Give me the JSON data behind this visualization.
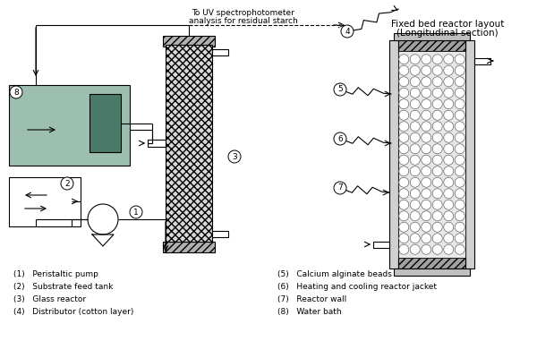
{
  "bg_color": "#ffffff",
  "water_bath_color": "#9dbfb0",
  "heater_color": "#4a7a6a",
  "legend_items_left": [
    "(1)   Peristaltic pump",
    "(2)   Substrate feed tank",
    "(3)   Glass reactor",
    "(4)   Distributor (cotton layer)"
  ],
  "legend_items_right": [
    "(5)   Calcium alginate beads",
    "(6)   Heating and cooling reactor jacket",
    "(7)   Reactor wall",
    "(8)   Water bath"
  ],
  "title_right_line1": "Fixed bed reactor layout",
  "title_right_line2": "(Longitudinal section)",
  "annotation_top_line1": "To UV spectrophotometer",
  "annotation_top_line2": "analysis for residual starch"
}
